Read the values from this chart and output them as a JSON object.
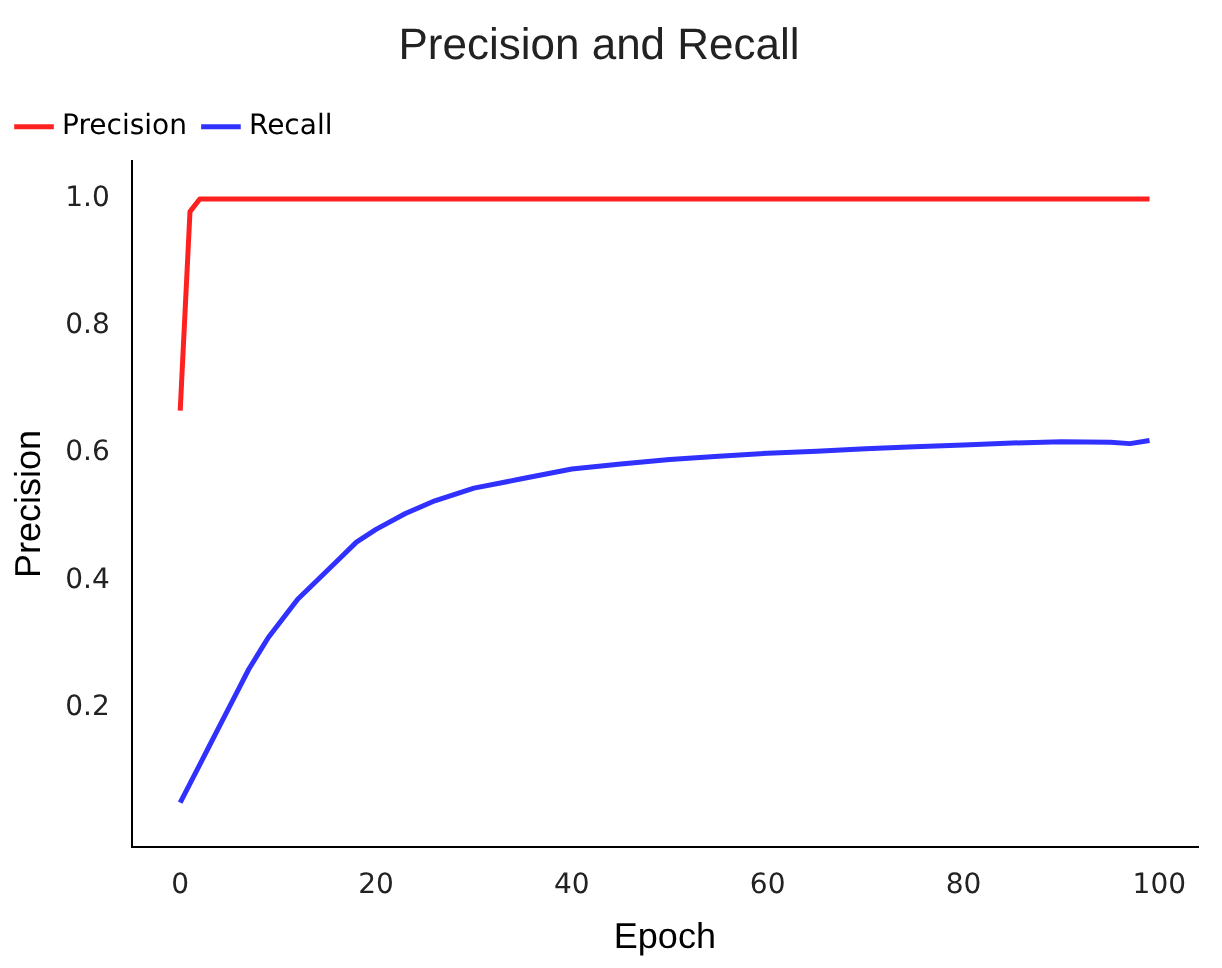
{
  "chart_data": {
    "type": "line",
    "title": "Precision and Recall",
    "xlabel": "Epoch",
    "ylabel": "Precision",
    "xlim": [
      -4.95,
      103.95
    ],
    "xticks": [
      0,
      20,
      40,
      60,
      80,
      100
    ],
    "ylim": [
      -0.02,
      1.06
    ],
    "yticks": [
      {
        "value": 0.2,
        "label": "0.2"
      },
      {
        "value": 0.4,
        "label": "0.4"
      },
      {
        "value": 0.6,
        "label": "0.6"
      },
      {
        "value": 0.8,
        "label": "0.8"
      },
      {
        "value": 1.0,
        "label": "1.0"
      }
    ],
    "grid": false,
    "legend": "top left",
    "marker": "none",
    "line_style": "solid",
    "series": [
      {
        "name": "Precision",
        "color": "#ff2020",
        "x": [
          0,
          1,
          2,
          99
        ],
        "values": [
          0.667,
          0.98,
          1.0,
          1.0
        ]
      },
      {
        "name": "Recall",
        "color": "#3030ff",
        "x": [
          0,
          1,
          2,
          3,
          4,
          5,
          6,
          7,
          8,
          9,
          10,
          12,
          14,
          16,
          18,
          20,
          23,
          26,
          30,
          35,
          40,
          45,
          50,
          55,
          60,
          65,
          70,
          75,
          80,
          85,
          90,
          95,
          97,
          99
        ],
        "values": [
          0.05,
          0.08,
          0.11,
          0.14,
          0.17,
          0.2,
          0.23,
          0.26,
          0.285,
          0.31,
          0.33,
          0.37,
          0.4,
          0.43,
          0.46,
          0.48,
          0.505,
          0.525,
          0.545,
          0.56,
          0.575,
          0.583,
          0.59,
          0.595,
          0.6,
          0.603,
          0.607,
          0.61,
          0.613,
          0.616,
          0.618,
          0.617,
          0.615,
          0.62
        ]
      }
    ]
  }
}
